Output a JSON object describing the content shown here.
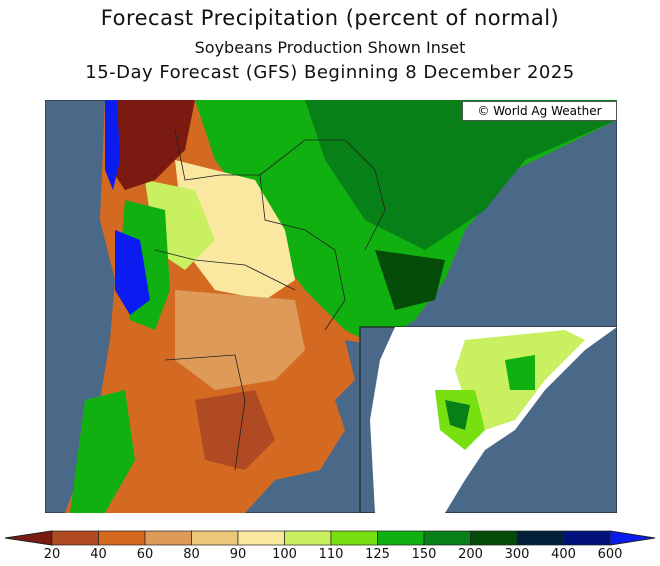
{
  "title": "Forecast Precipitation (percent of normal)",
  "subtitle": "Soybeans Production Shown Inset",
  "subtitle2": "15-Day Forecast (GFS) Beginning 8 December 2025",
  "credit": "© World Ag Weather",
  "legend": {
    "labels": [
      "20",
      "40",
      "60",
      "80",
      "90",
      "100",
      "110",
      "125",
      "150",
      "200",
      "300",
      "400",
      "600"
    ],
    "colors": [
      "#7a1a10",
      "#b04a22",
      "#d46a22",
      "#dd9a58",
      "#ecc87a",
      "#fbe8a0",
      "#c8f060",
      "#78e010",
      "#10b010",
      "#088018",
      "#044c08",
      "#02203a",
      "#02107a",
      "#0a1cf0"
    ]
  },
  "colors": {
    "ocean": "#4a6888"
  }
}
